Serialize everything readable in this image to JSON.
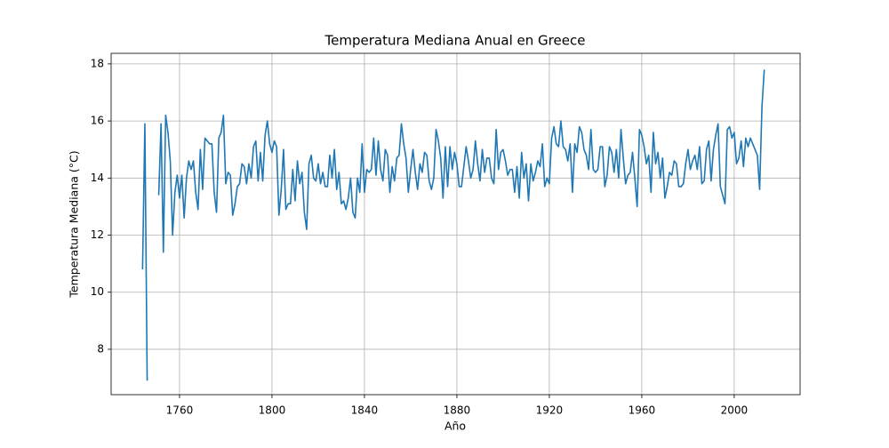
{
  "chart_data": {
    "type": "line",
    "title": "Temperatura Mediana Anual en Greece",
    "xlabel": "Año",
    "ylabel": "Temperatura Mediana (°C)",
    "x": [
      1744,
      1745,
      1746,
      1747,
      1748,
      1749,
      1750,
      1751,
      1752,
      1753,
      1754,
      1755,
      1756,
      1757,
      1758,
      1759,
      1760,
      1761,
      1762,
      1763,
      1764,
      1765,
      1766,
      1767,
      1768,
      1769,
      1770,
      1771,
      1772,
      1773,
      1774,
      1775,
      1776,
      1777,
      1778,
      1779,
      1780,
      1781,
      1782,
      1783,
      1784,
      1785,
      1786,
      1787,
      1788,
      1789,
      1790,
      1791,
      1792,
      1793,
      1794,
      1795,
      1796,
      1797,
      1798,
      1799,
      1800,
      1801,
      1802,
      1803,
      1804,
      1805,
      1806,
      1807,
      1808,
      1809,
      1810,
      1811,
      1812,
      1813,
      1814,
      1815,
      1816,
      1817,
      1818,
      1819,
      1820,
      1821,
      1822,
      1823,
      1824,
      1825,
      1826,
      1827,
      1828,
      1829,
      1830,
      1831,
      1832,
      1833,
      1834,
      1835,
      1836,
      1837,
      1838,
      1839,
      1840,
      1841,
      1842,
      1843,
      1844,
      1845,
      1846,
      1847,
      1848,
      1849,
      1850,
      1851,
      1852,
      1853,
      1854,
      1855,
      1856,
      1857,
      1858,
      1859,
      1860,
      1861,
      1862,
      1863,
      1864,
      1865,
      1866,
      1867,
      1868,
      1869,
      1870,
      1871,
      1872,
      1873,
      1874,
      1875,
      1876,
      1877,
      1878,
      1879,
      1880,
      1881,
      1882,
      1883,
      1884,
      1885,
      1886,
      1887,
      1888,
      1889,
      1890,
      1891,
      1892,
      1893,
      1894,
      1895,
      1896,
      1897,
      1898,
      1899,
      1900,
      1901,
      1902,
      1903,
      1904,
      1905,
      1906,
      1907,
      1908,
      1909,
      1910,
      1911,
      1912,
      1913,
      1914,
      1915,
      1916,
      1917,
      1918,
      1919,
      1920,
      1921,
      1922,
      1923,
      1924,
      1925,
      1926,
      1927,
      1928,
      1929,
      1930,
      1931,
      1932,
      1933,
      1934,
      1935,
      1936,
      1937,
      1938,
      1939,
      1940,
      1941,
      1942,
      1943,
      1944,
      1945,
      1946,
      1947,
      1948,
      1949,
      1950,
      1951,
      1952,
      1953,
      1954,
      1955,
      1956,
      1957,
      1958,
      1959,
      1960,
      1961,
      1962,
      1963,
      1964,
      1965,
      1966,
      1967,
      1968,
      1969,
      1970,
      1971,
      1972,
      1973,
      1974,
      1975,
      1976,
      1977,
      1978,
      1979,
      1980,
      1981,
      1982,
      1983,
      1984,
      1985,
      1986,
      1987,
      1988,
      1989,
      1990,
      1991,
      1992,
      1993,
      1994,
      1995,
      1996,
      1997,
      1998,
      1999,
      2000,
      2001,
      2002,
      2003,
      2004,
      2005,
      2006,
      2007,
      2008,
      2009,
      2010,
      2011,
      2012,
      2013
    ],
    "series": [
      {
        "color": "#1f77b4",
        "values": [
          10.8,
          15.9,
          6.9,
          null,
          null,
          null,
          null,
          13.4,
          15.9,
          11.4,
          16.2,
          15.6,
          14.6,
          12.0,
          13.5,
          14.1,
          13.3,
          14.1,
          12.6,
          14.0,
          14.6,
          14.3,
          14.6,
          13.5,
          12.9,
          15.0,
          13.6,
          15.4,
          15.3,
          15.2,
          15.2,
          13.5,
          12.8,
          15.4,
          15.6,
          16.2,
          13.8,
          14.2,
          14.1,
          12.7,
          13.1,
          13.7,
          13.8,
          14.5,
          14.4,
          13.8,
          14.5,
          14.0,
          15.1,
          15.3,
          13.9,
          14.9,
          13.9,
          15.5,
          16.0,
          15.2,
          14.9,
          15.3,
          15.1,
          12.7,
          13.6,
          15.0,
          12.9,
          13.1,
          13.1,
          14.3,
          13.2,
          14.6,
          13.8,
          14.2,
          12.8,
          12.2,
          14.5,
          14.8,
          14.0,
          13.9,
          14.5,
          13.8,
          14.2,
          13.7,
          13.7,
          14.8,
          14.0,
          15.0,
          13.6,
          14.2,
          13.1,
          13.2,
          12.9,
          13.3,
          14.0,
          12.8,
          12.6,
          14.0,
          13.5,
          15.2,
          13.5,
          14.3,
          14.2,
          14.3,
          15.4,
          14.1,
          15.3,
          14.3,
          13.9,
          15.0,
          14.8,
          13.5,
          14.4,
          13.9,
          14.7,
          14.8,
          15.9,
          15.2,
          14.7,
          13.5,
          14.3,
          15.0,
          14.2,
          13.6,
          14.5,
          14.2,
          14.9,
          14.8,
          13.9,
          13.6,
          14.0,
          15.7,
          15.3,
          14.7,
          13.3,
          15.1,
          13.7,
          15.1,
          14.3,
          14.9,
          14.5,
          13.7,
          13.7,
          14.4,
          15.1,
          14.6,
          14.0,
          14.3,
          15.3,
          14.5,
          13.9,
          15.0,
          14.2,
          14.7,
          14.7,
          14.0,
          13.8,
          15.7,
          14.3,
          14.9,
          15.0,
          14.6,
          14.1,
          14.3,
          14.3,
          13.5,
          14.4,
          13.3,
          14.9,
          14.0,
          14.5,
          13.2,
          14.5,
          13.9,
          14.2,
          14.6,
          14.4,
          15.2,
          13.7,
          14.0,
          13.8,
          15.4,
          15.8,
          15.2,
          15.1,
          16.0,
          15.1,
          15.0,
          14.6,
          15.2,
          13.5,
          15.2,
          14.9,
          15.8,
          15.6,
          15.0,
          14.8,
          14.3,
          15.7,
          14.3,
          14.2,
          14.3,
          15.1,
          15.1,
          13.7,
          14.1,
          15.1,
          14.9,
          14.2,
          15.0,
          14.0,
          15.7,
          14.7,
          13.8,
          14.1,
          14.2,
          14.9,
          14.0,
          13.0,
          15.7,
          15.5,
          15.1,
          14.5,
          14.8,
          13.5,
          15.6,
          14.5,
          14.9,
          14.0,
          14.7,
          13.3,
          13.7,
          14.2,
          14.1,
          14.6,
          14.5,
          13.7,
          13.7,
          13.8,
          14.5,
          15.0,
          14.3,
          14.6,
          14.8,
          14.3,
          15.1,
          13.8,
          13.9,
          15.0,
          15.3,
          13.9,
          15.0,
          15.5,
          15.9,
          13.7,
          13.4,
          13.1,
          15.7,
          15.8,
          15.4,
          15.6,
          14.5,
          14.7,
          15.3,
          14.4,
          15.4,
          15.1,
          15.4,
          15.2,
          15.0,
          14.8,
          13.6,
          16.5,
          17.8
        ]
      }
    ],
    "xlim": [
      1730.4,
      2028.5
    ],
    "ylim": [
      6.41,
      18.37
    ],
    "xticks": [
      1760,
      1800,
      1840,
      1880,
      1920,
      1960,
      2000
    ],
    "yticks": [
      8,
      10,
      12,
      14,
      16,
      18
    ],
    "grid": true
  }
}
